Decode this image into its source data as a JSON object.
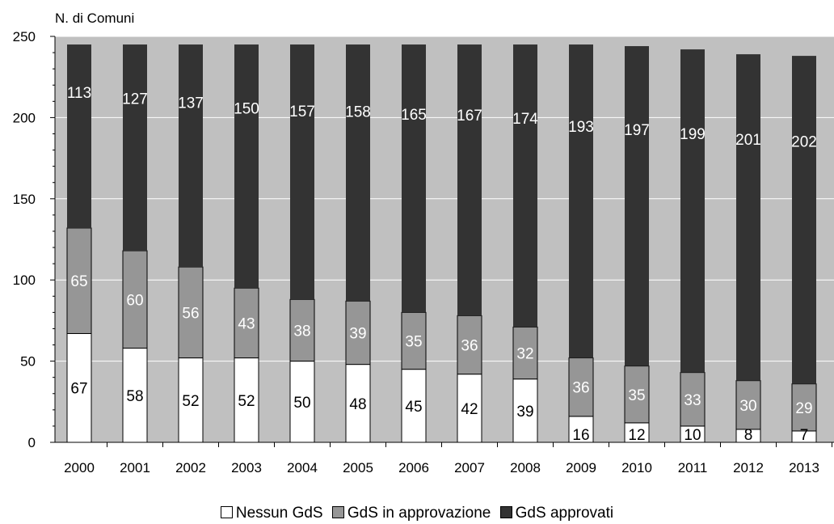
{
  "chart_data": {
    "type": "bar",
    "stacked": true,
    "ylabel": "N. di Comuni",
    "xlabel": "",
    "ylim": [
      0,
      250
    ],
    "yticks": [
      0,
      50,
      100,
      150,
      200,
      250
    ],
    "grid": true,
    "legend_position": "bottom",
    "categories": [
      "2000",
      "2001",
      "2002",
      "2003",
      "2004",
      "2005",
      "2006",
      "2007",
      "2008",
      "2009",
      "2010",
      "2011",
      "2012",
      "2013"
    ],
    "series": [
      {
        "name": "Nessun GdS",
        "color": "#ffffff",
        "values": [
          67,
          58,
          52,
          52,
          50,
          48,
          45,
          42,
          39,
          16,
          12,
          10,
          8,
          7
        ]
      },
      {
        "name": "GdS in approvazione",
        "color": "#969696",
        "values": [
          65,
          60,
          56,
          43,
          38,
          39,
          35,
          36,
          32,
          36,
          35,
          33,
          30,
          29
        ]
      },
      {
        "name": "GdS approvati",
        "color": "#333333",
        "values": [
          113,
          127,
          137,
          150,
          157,
          158,
          165,
          167,
          174,
          193,
          197,
          199,
          201,
          202
        ]
      }
    ]
  },
  "colors": {
    "plot_background": "#c0c0c0",
    "grid": "#ffffff"
  }
}
